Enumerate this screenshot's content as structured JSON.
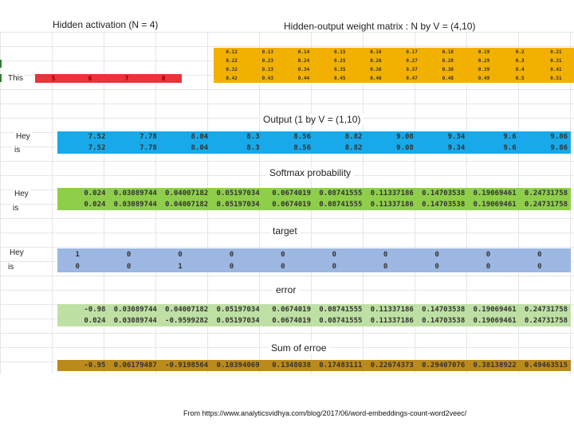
{
  "labels": {
    "hidden_activation": "Hidden activation (N = 4)",
    "weight_matrix": "Hidden-output weight matrix :  N by V = (4,10)",
    "output": "Output (1 by V = (1,10)",
    "softmax": "Softmax probability",
    "target": "target",
    "error": "error",
    "sum_error": "Sum of erroe",
    "footer": "From https://www.analyticsvidhya.com/blog/2017/06/word-embeddings-count-word2veec/"
  },
  "row_labels": {
    "this": "This",
    "output": [
      "Hey",
      "is"
    ],
    "softmax": [
      "Hey",
      "is"
    ],
    "target": [
      "Hey",
      "is"
    ]
  },
  "hidden_activation": [
    "5",
    "6",
    "7",
    "8"
  ],
  "weights": [
    [
      "0.12",
      "0.13",
      "0.14",
      "0.15",
      "0.16",
      "0.17",
      "0.18",
      "0.19",
      "0.2",
      "0.21"
    ],
    [
      "0.22",
      "0.23",
      "0.24",
      "0.25",
      "0.26",
      "0.27",
      "0.28",
      "0.29",
      "0.3",
      "0.31"
    ],
    [
      "0.32",
      "0.33",
      "0.34",
      "0.35",
      "0.36",
      "0.37",
      "0.38",
      "0.39",
      "0.4",
      "0.41"
    ],
    [
      "0.42",
      "0.43",
      "0.44",
      "0.45",
      "0.46",
      "0.47",
      "0.48",
      "0.49",
      "0.5",
      "0.51"
    ]
  ],
  "output": [
    [
      "7.52",
      "7.78",
      "8.04",
      "8.3",
      "8.56",
      "8.82",
      "9.08",
      "9.34",
      "9.6",
      "9.86"
    ],
    [
      "7.52",
      "7.78",
      "8.04",
      "8.3",
      "8.56",
      "8.82",
      "9.08",
      "9.34",
      "9.6",
      "9.86"
    ]
  ],
  "softmax": [
    [
      "0.024",
      "0.03089744",
      "0.04007182",
      "0.05197034",
      "0.0674019",
      "0.08741555",
      "0.11337186",
      "0.14703538",
      "0.19069461",
      "0.24731758"
    ],
    [
      "0.024",
      "0.03089744",
      "0.04007182",
      "0.05197034",
      "0.0674019",
      "0.08741555",
      "0.11337186",
      "0.14703538",
      "0.19069461",
      "0.24731758"
    ]
  ],
  "target": [
    [
      "1",
      "0",
      "0",
      "0",
      "0",
      "0",
      "0",
      "0",
      "0",
      "0"
    ],
    [
      "0",
      "0",
      "1",
      "0",
      "0",
      "0",
      "0",
      "0",
      "0",
      "0"
    ]
  ],
  "error": [
    [
      "-0.98",
      "0.03089744",
      "0.04007182",
      "0.05197034",
      "0.0674019",
      "0.08741555",
      "0.11337186",
      "0.14703538",
      "0.19069461",
      "0.24731758"
    ],
    [
      "0.024",
      "0.03089744",
      "-0.9599282",
      "0.05197034",
      "0.0674019",
      "0.08741555",
      "0.11337186",
      "0.14703538",
      "0.19069461",
      "0.24731758"
    ]
  ],
  "sum_error": [
    "-0.95",
    "0.06179487",
    "-0.9198564",
    "0.10394069",
    "0.1348038",
    "0.17483111",
    "0.22674373",
    "0.29407076",
    "0.38138922",
    "0.49463515"
  ],
  "colors": {
    "weights": "#f2b100",
    "hidden": "#e8343a",
    "output": "#18a9ea",
    "softmax": "#8fce4a",
    "target": "#9bb7e2",
    "error": "#bfe0a4",
    "sum_error": "#bb8a1c"
  }
}
